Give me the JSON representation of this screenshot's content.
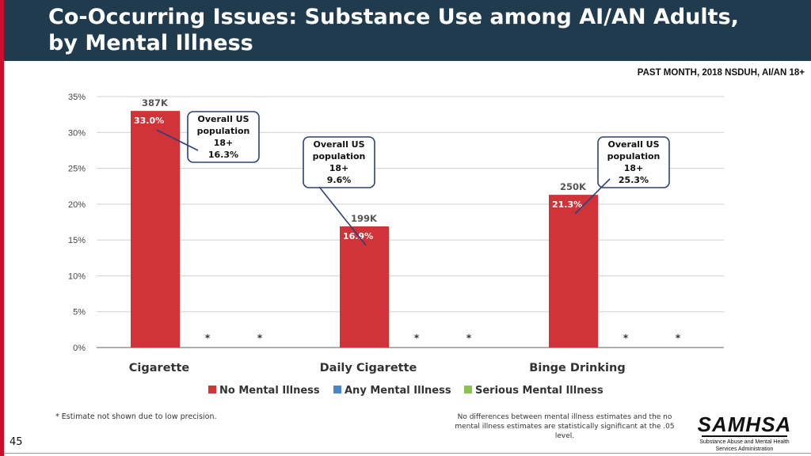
{
  "title": "Co-Occurring Issues: Substance Use among AI/AN Adults, by Mental Illness",
  "subtitle": "PAST MONTH, 2018 NSDUH, AI/AN 18+",
  "colors": {
    "header_bg": "#1f3b4d",
    "accent_red": "#c8102e",
    "no_mental_illness": "#d13438",
    "any_mental_illness": "#4a86c5",
    "serious_mental_illness": "#8cc152",
    "callout_border": "#2e3f7a"
  },
  "chart_data": {
    "type": "bar",
    "categories": [
      "Cigarette",
      "Daily Cigarette",
      "Binge Drinking"
    ],
    "series": [
      {
        "name": "No Mental Illness",
        "values": [
          33.0,
          16.9,
          21.3
        ],
        "labels": [
          "33.0%",
          "16.9%",
          "21.3%"
        ],
        "counts": [
          "387K",
          "199K",
          "250K"
        ]
      },
      {
        "name": "Any Mental Illness",
        "values": [
          null,
          null,
          null
        ],
        "labels": [
          "*",
          "*",
          "*"
        ]
      },
      {
        "name": "Serious Mental Illness",
        "values": [
          null,
          null,
          null
        ],
        "labels": [
          "*",
          "*",
          "*"
        ]
      }
    ],
    "yticks": [
      "0%",
      "5%",
      "10%",
      "15%",
      "20%",
      "25%",
      "30%",
      "35%"
    ],
    "ylim": [
      0,
      35
    ],
    "grid": true,
    "legend_position": "bottom",
    "callouts": [
      {
        "category": "Cigarette",
        "lines": [
          "Overall US",
          "population",
          "18+",
          "16.3%"
        ]
      },
      {
        "category": "Daily Cigarette",
        "lines": [
          "Overall US",
          "population",
          "18+",
          "9.6%"
        ]
      },
      {
        "category": "Binge Drinking",
        "lines": [
          "Overall US",
          "population",
          "18+",
          "25.3%"
        ]
      }
    ]
  },
  "footnote": "* Estimate not shown due to low precision.",
  "significance_note": "No differences between mental illness estimates and the no mental illness estimates are statistically significant at the .05 level.",
  "logo": {
    "name": "SAMHSA",
    "subtitle": "Substance Abuse and Mental Health Services Administration"
  },
  "page_number": "45"
}
